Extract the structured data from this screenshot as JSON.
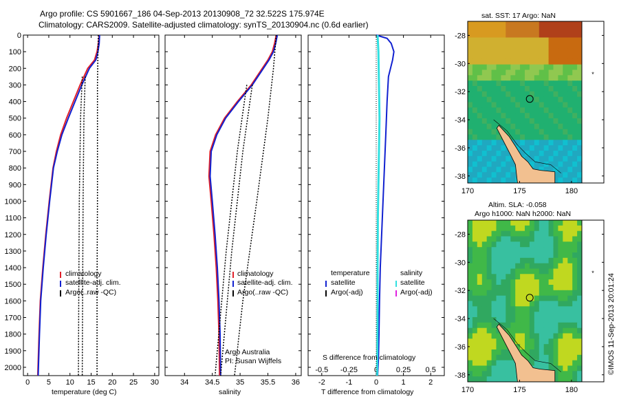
{
  "header": {
    "line1": "Argo profile: CS 5901667_186 04-Sep-2013 20130908_72 32.522S 175.974E",
    "line2": "Climatology: CARS2009. Satellite-adjusted climatology: synTS_20130904.nc (0.6d earlier)"
  },
  "colors": {
    "climatology": "#e0202a",
    "satellite": "#1020d0",
    "argo": "#000000",
    "salinity_sat": "#30e0e0",
    "salinity_argo": "#e020e0"
  },
  "chart_data": [
    {
      "type": "line",
      "id": "temperature",
      "xlabel": "temperature (deg C)",
      "ylim": [
        2050,
        0
      ],
      "xlim": [
        -1,
        31
      ],
      "xticks": [
        "0",
        "5",
        "10",
        "15",
        "20",
        "25",
        "30"
      ],
      "yticks": [
        "0",
        "100",
        "200",
        "300",
        "400",
        "500",
        "600",
        "700",
        "800",
        "900",
        "1000",
        "1100",
        "1200",
        "1300",
        "1400",
        "1500",
        "1600",
        "1700",
        "1800",
        "1900",
        "2000"
      ],
      "series": [
        {
          "name": "climatology",
          "x": [
            16.9,
            16.7,
            16.4,
            15.8,
            14.2,
            12.4,
            10.8,
            9.2,
            7.8,
            6.8,
            6.0,
            5.1,
            4.3,
            3.6,
            3.0,
            2.7,
            2.4
          ],
          "y": [
            0,
            50,
            100,
            150,
            200,
            300,
            400,
            500,
            600,
            700,
            800,
            1000,
            1200,
            1400,
            1600,
            1800,
            2050
          ]
        },
        {
          "name": "satellite-adj. clim.",
          "x": [
            17.0,
            16.9,
            16.6,
            16.1,
            14.6,
            12.8,
            11.2,
            9.6,
            8.1,
            7.0,
            6.1,
            5.2,
            4.4,
            3.7,
            3.1,
            2.8,
            2.5
          ],
          "y": [
            0,
            50,
            100,
            150,
            200,
            300,
            400,
            500,
            600,
            700,
            800,
            1000,
            1200,
            1400,
            1600,
            1800,
            2050
          ]
        },
        {
          "name": "Argo(..raw -QC)",
          "x": [
            16.7,
            16.6,
            16.5,
            16.5,
            16.5,
            16.4,
            16.4
          ],
          "y": [
            0,
            100,
            300,
            600,
            1000,
            1500,
            2050
          ]
        },
        {
          "name": "Argo spread low",
          "x": [
            12.9,
            12.5,
            12.2,
            12.1,
            12.0
          ],
          "y": [
            250,
            500,
            1000,
            1500,
            2050
          ]
        },
        {
          "name": "Argo spread high",
          "x": [
            13.6,
            13.3,
            13.1,
            13.0,
            12.9
          ],
          "y": [
            250,
            500,
            1000,
            1500,
            2050
          ]
        }
      ],
      "legend": [
        "climatology",
        "satellite-adj. clim.",
        "Argo(..raw -QC)"
      ],
      "legend_placement": "lower-center"
    },
    {
      "type": "line",
      "id": "salinity",
      "xlabel": "salinity",
      "ylim": [
        2050,
        0
      ],
      "xlim": [
        33.65,
        36.1
      ],
      "xticks": [
        "34",
        "34.5",
        "35",
        "35.5",
        "36"
      ],
      "series": [
        {
          "name": "climatology",
          "x": [
            35.65,
            35.62,
            35.58,
            35.5,
            35.4,
            35.2,
            34.95,
            34.72,
            34.56,
            34.46,
            34.44,
            34.48,
            34.53,
            34.57,
            34.6,
            34.62,
            34.63
          ],
          "y": [
            0,
            50,
            100,
            150,
            200,
            300,
            400,
            500,
            600,
            700,
            850,
            1000,
            1200,
            1400,
            1600,
            1800,
            2050
          ]
        },
        {
          "name": "satellite-adj. clim.",
          "x": [
            35.67,
            35.64,
            35.6,
            35.52,
            35.42,
            35.22,
            34.97,
            34.74,
            34.58,
            34.48,
            34.46,
            34.5,
            34.55,
            34.59,
            34.62,
            34.64,
            34.65
          ],
          "y": [
            0,
            50,
            100,
            150,
            200,
            300,
            400,
            500,
            600,
            700,
            850,
            1000,
            1200,
            1400,
            1600,
            1800,
            2050
          ]
        },
        {
          "name": "Argo(..raw -QC)",
          "x": [
            35.65,
            35.6,
            35.5,
            35.3,
            35.05,
            34.9
          ],
          "y": [
            0,
            200,
            500,
            1000,
            1600,
            2050
          ]
        },
        {
          "name": "Argo spread low",
          "x": [
            35.12,
            34.95,
            34.75,
            34.55
          ],
          "y": [
            300,
            700,
            1300,
            2050
          ]
        },
        {
          "name": "Argo spread high",
          "x": [
            35.22,
            35.05,
            34.85,
            34.65
          ],
          "y": [
            300,
            700,
            1300,
            2050
          ]
        }
      ],
      "legend": [
        "climatology",
        "satellite-adj. clim.",
        "Argo(..raw -QC)"
      ],
      "annotations": [
        "Argo Australia",
        "PI: Susan Wijffels"
      ]
    },
    {
      "type": "line",
      "id": "difference",
      "xlabel": "T difference from climatology",
      "xlabel_top": "S difference from climatology",
      "ylim": [
        2050,
        0
      ],
      "xlim": [
        -2.5,
        2.5
      ],
      "xticks": [
        "-2",
        "-1",
        "0",
        "1",
        "2"
      ],
      "xticks_top": [
        "-0.5",
        "-0.25",
        "0",
        "0.25",
        "0.5"
      ],
      "series": [
        {
          "name": "temperature satellite",
          "x": [
            0.0,
            0.4,
            0.55,
            0.65,
            0.6,
            0.45,
            0.4,
            0.35,
            0.3,
            0.25,
            0.2,
            0.15,
            0.12,
            0.1,
            0.08,
            0.05
          ],
          "y": [
            0,
            20,
            50,
            100,
            150,
            250,
            400,
            600,
            800,
            1000,
            1200,
            1400,
            1600,
            1800,
            1950,
            2050
          ]
        },
        {
          "name": "salinity satellite",
          "x": [
            0.05,
            0.08,
            0.1,
            0.12,
            0.1,
            0.08,
            0.06,
            0.05,
            0.05,
            0.04,
            0.03
          ],
          "y": [
            0,
            100,
            300,
            500,
            700,
            900,
            1100,
            1400,
            1700,
            1900,
            2050
          ]
        }
      ],
      "legend_temperature": {
        "title": "temperature",
        "items": [
          "satellite",
          "Argo(-adj)"
        ]
      },
      "legend_salinity": {
        "title": "salinity",
        "items": [
          "satellite",
          "Argo(-adj)"
        ]
      }
    }
  ],
  "maps": {
    "sst": {
      "title": "sat. SST: 17 Argo: NaN",
      "yticks": [
        "-28",
        "-30",
        "-32",
        "-34",
        "-36",
        "-38"
      ],
      "xticks": [
        "170",
        "175",
        "180"
      ]
    },
    "sla": {
      "title1": "Altim. SLA: -0.058",
      "title2": "Argo h1000: NaN h2000: NaN",
      "yticks": [
        "-28",
        "-30",
        "-32",
        "-34",
        "-36",
        "-38"
      ],
      "xticks": [
        "170",
        "175",
        "180"
      ]
    }
  },
  "footer": {
    "credit": "©IMOS 11-Sep-2013 20:01:24"
  }
}
